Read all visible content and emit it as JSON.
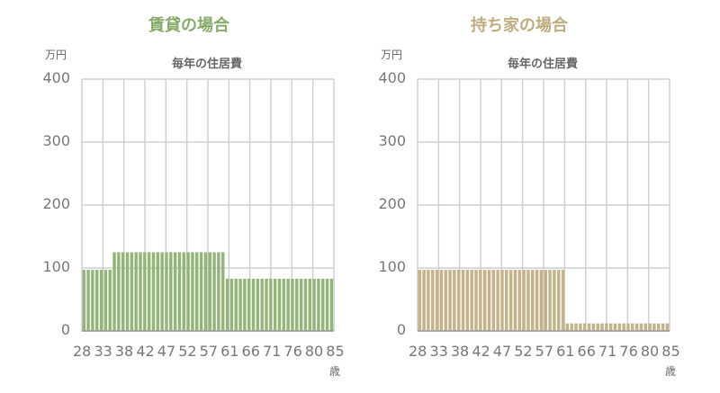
{
  "chart_data": [
    {
      "type": "bar",
      "title": "賃貸の場合",
      "subtitle": "毎年の住居費",
      "ylabel": "万円",
      "xlabel": "歳",
      "color": "#93b57a",
      "title_color": "#86ab6a",
      "ylim": [
        0,
        400
      ],
      "yticks": [
        0,
        100,
        200,
        300,
        400
      ],
      "xtick_labels": [
        "28",
        "33",
        "38",
        "42",
        "47",
        "52",
        "57",
        "61",
        "66",
        "71",
        "76",
        "80",
        "85"
      ],
      "grid": true,
      "x": [
        28,
        29,
        30,
        31,
        32,
        33,
        34,
        35,
        36,
        37,
        38,
        39,
        40,
        41,
        42,
        43,
        44,
        45,
        46,
        47,
        48,
        49,
        50,
        51,
        52,
        53,
        54,
        55,
        56,
        57,
        58,
        59,
        60,
        61,
        62,
        63,
        64,
        65,
        66,
        67,
        68,
        69,
        70,
        71,
        72,
        73,
        74,
        75,
        76,
        77,
        78,
        79,
        80,
        81,
        82,
        83,
        84,
        85
      ],
      "values": [
        97,
        97,
        97,
        97,
        97,
        97,
        97,
        125,
        125,
        125,
        125,
        125,
        125,
        125,
        125,
        125,
        125,
        125,
        125,
        125,
        125,
        125,
        125,
        125,
        125,
        125,
        125,
        125,
        125,
        125,
        125,
        125,
        125,
        83,
        83,
        83,
        83,
        83,
        83,
        83,
        83,
        83,
        83,
        83,
        83,
        83,
        83,
        83,
        83,
        83,
        83,
        83,
        83,
        83,
        83,
        83,
        83,
        83
      ]
    },
    {
      "type": "bar",
      "title": "持ち家の場合",
      "subtitle": "毎年の住居費",
      "ylabel": "万円",
      "xlabel": "歳",
      "color": "#c4b38a",
      "title_color": "#bfac80",
      "ylim": [
        0,
        400
      ],
      "yticks": [
        0,
        100,
        200,
        300,
        400
      ],
      "xtick_labels": [
        "28",
        "33",
        "38",
        "42",
        "47",
        "52",
        "57",
        "61",
        "66",
        "71",
        "76",
        "80",
        "85"
      ],
      "grid": true,
      "x": [
        28,
        29,
        30,
        31,
        32,
        33,
        34,
        35,
        36,
        37,
        38,
        39,
        40,
        41,
        42,
        43,
        44,
        45,
        46,
        47,
        48,
        49,
        50,
        51,
        52,
        53,
        54,
        55,
        56,
        57,
        58,
        59,
        60,
        61,
        62,
        63,
        64,
        65,
        66,
        67,
        68,
        69,
        70,
        71,
        72,
        73,
        74,
        75,
        76,
        77,
        78,
        79,
        80,
        81,
        82,
        83,
        84,
        85
      ],
      "values": [
        97,
        97,
        97,
        97,
        97,
        97,
        97,
        97,
        97,
        97,
        97,
        97,
        97,
        97,
        97,
        97,
        97,
        97,
        97,
        97,
        97,
        97,
        97,
        97,
        97,
        97,
        97,
        97,
        97,
        97,
        97,
        97,
        97,
        97,
        12,
        12,
        12,
        12,
        12,
        12,
        12,
        12,
        12,
        12,
        12,
        12,
        12,
        12,
        12,
        12,
        12,
        12,
        12,
        12,
        12,
        12,
        12,
        12
      ]
    }
  ]
}
